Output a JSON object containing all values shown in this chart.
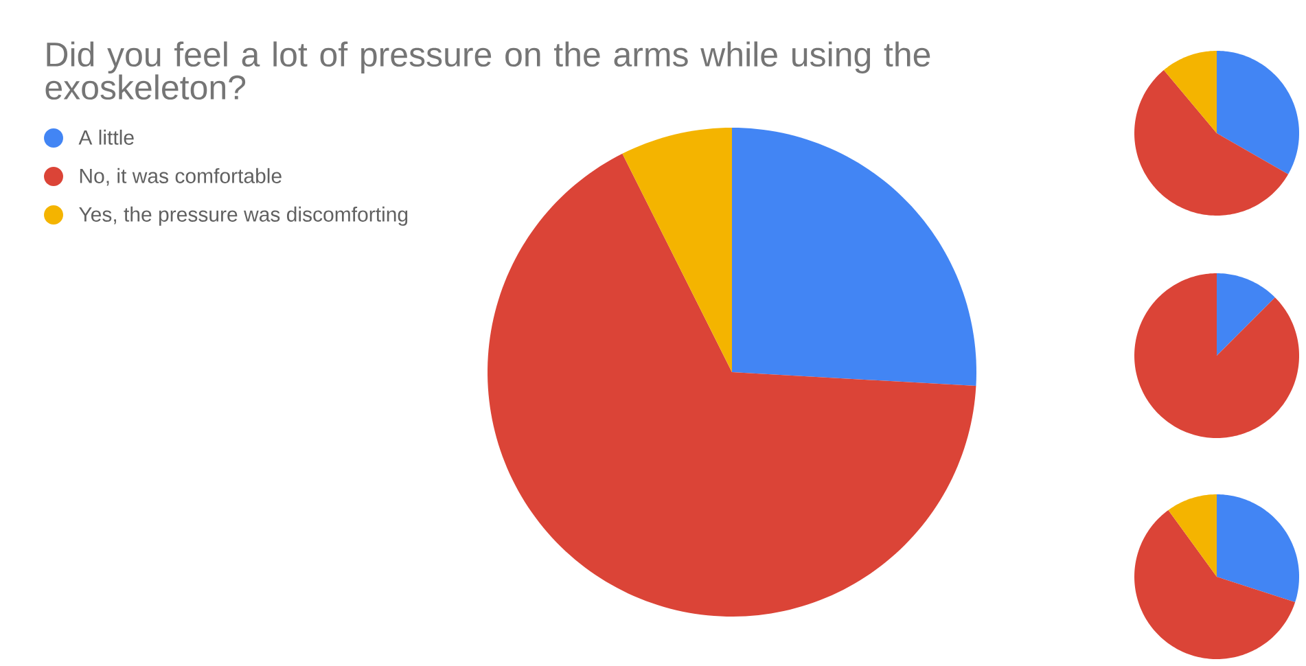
{
  "chart_data": [
    {
      "type": "pie",
      "title": "Did you feel a lot of pressure on the arms while using the exoskeleton?",
      "categories": [
        "A little",
        "No, it was comfortable",
        "Yes, the pressure was discomforting"
      ],
      "values": [
        25.9,
        66.7,
        7.4
      ],
      "colors": [
        "#4285f4",
        "#db4437",
        "#f4b400"
      ],
      "legend": "top left"
    },
    {
      "type": "pie",
      "categories": [
        null,
        null,
        null
      ],
      "values": [
        33.3,
        55.6,
        11.1
      ],
      "colors": [
        "#4285f4",
        "#db4437",
        "#f4b400"
      ]
    },
    {
      "type": "pie",
      "categories": [
        null,
        null
      ],
      "values": [
        12.5,
        87.5
      ],
      "colors": [
        "#4285f4",
        "#db4437"
      ]
    },
    {
      "type": "pie",
      "categories": [
        null,
        null,
        null
      ],
      "values": [
        30,
        60,
        10
      ],
      "colors": [
        "#4285f4",
        "#db4437",
        "#f4b400"
      ]
    }
  ]
}
